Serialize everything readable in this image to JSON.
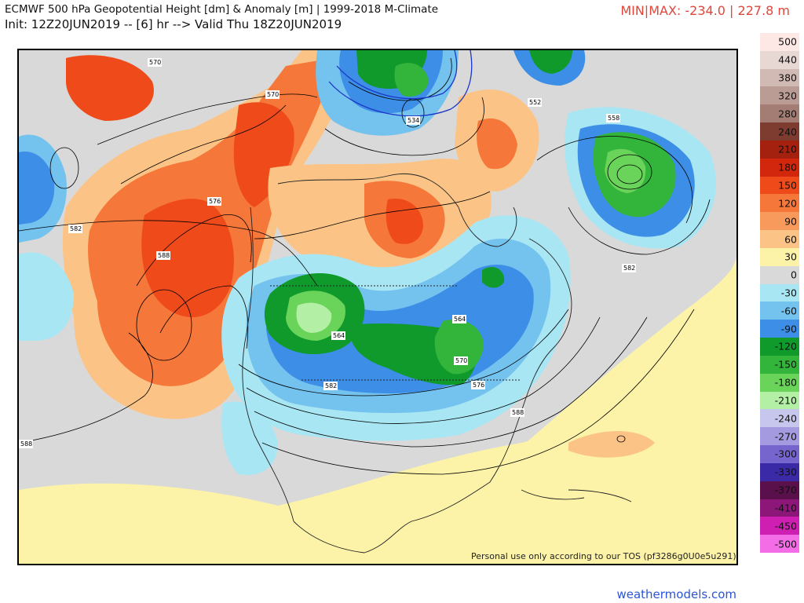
{
  "header": {
    "title": "ECMWF 500 hPa Geopotential Height [dm] & Anomaly [m] | 1999-2018 M-Climate",
    "init": "Init: 12Z20JUN2019 -- [6] hr --> Valid Thu 18Z20JUN2019",
    "minmax": "MIN|MAX: -234.0 | 227.8 m"
  },
  "footer": {
    "tos": "Personal use only according to our TOS (pf3286g0U0e5u291)",
    "site": "weathermodels.com"
  },
  "contour_labels": [
    "570",
    "570",
    "576",
    "582",
    "588",
    "534",
    "552",
    "558",
    "582",
    "564",
    "564",
    "570",
    "576",
    "582",
    "588",
    "588"
  ],
  "legend": [
    {
      "label": "500",
      "color": "#fde8e6"
    },
    {
      "label": "440",
      "color": "#e8d8d4"
    },
    {
      "label": "380",
      "color": "#d2bab4"
    },
    {
      "label": "320",
      "color": "#bb9c94"
    },
    {
      "label": "280",
      "color": "#a37d73"
    },
    {
      "label": "240",
      "color": "#7e3b2f"
    },
    {
      "label": "210",
      "color": "#a4200f"
    },
    {
      "label": "180",
      "color": "#d2270d"
    },
    {
      "label": "150",
      "color": "#ef4a1a"
    },
    {
      "label": "120",
      "color": "#f6773a"
    },
    {
      "label": "90",
      "color": "#f89a5c"
    },
    {
      "label": "60",
      "color": "#fbc486"
    },
    {
      "label": "30",
      "color": "#fdf3a8"
    },
    {
      "label": "0",
      "color": "#d9d9d9"
    },
    {
      "label": "-30",
      "color": "#a9e6f4"
    },
    {
      "label": "-60",
      "color": "#74c2ee"
    },
    {
      "label": "-90",
      "color": "#3c8ee6"
    },
    {
      "label": "-120",
      "color": "#109a2c"
    },
    {
      "label": "-150",
      "color": "#33b43b"
    },
    {
      "label": "-180",
      "color": "#6ad35a"
    },
    {
      "label": "-210",
      "color": "#b3f0a5"
    },
    {
      "label": "-240",
      "color": "#c7c7ee"
    },
    {
      "label": "-270",
      "color": "#a49ae0"
    },
    {
      "label": "-300",
      "color": "#7565cc"
    },
    {
      "label": "-330",
      "color": "#3b2aa6"
    },
    {
      "label": "-370",
      "color": "#5a104a"
    },
    {
      "label": "-410",
      "color": "#8c1778"
    },
    {
      "label": "-450",
      "color": "#cf1fb2"
    },
    {
      "label": "-500",
      "color": "#f26de6"
    }
  ]
}
